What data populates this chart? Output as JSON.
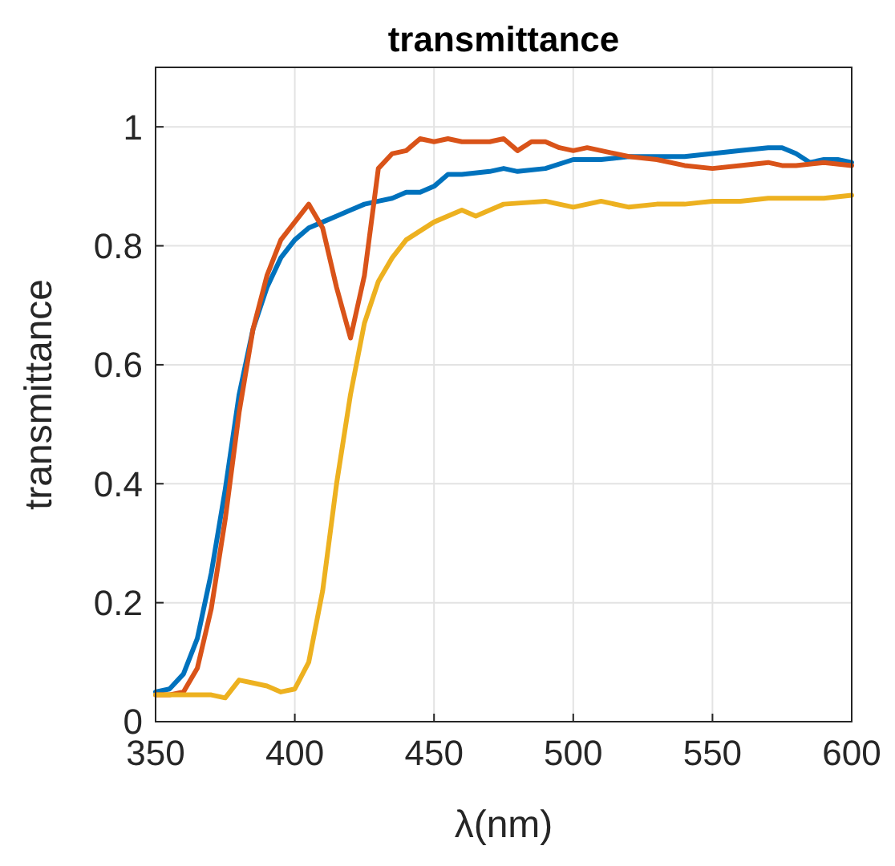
{
  "chart_data": {
    "type": "line",
    "title": "transmittance",
    "xlabel": "λ(nm)",
    "ylabel": "transmittance",
    "xlim": [
      350,
      600
    ],
    "ylim": [
      0,
      1.1
    ],
    "xticks": [
      350,
      400,
      450,
      500,
      550,
      600
    ],
    "yticks": [
      0,
      0.2,
      0.4,
      0.6,
      0.8,
      1
    ],
    "grid": true,
    "marker": "none",
    "line_style": "solid",
    "series": [
      {
        "color": "#0072bd",
        "x": [
          350,
          355,
          360,
          365,
          370,
          375,
          380,
          385,
          390,
          395,
          400,
          405,
          410,
          415,
          420,
          425,
          430,
          435,
          440,
          445,
          450,
          455,
          460,
          470,
          475,
          480,
          490,
          500,
          510,
          520,
          530,
          540,
          550,
          560,
          570,
          575,
          580,
          585,
          590,
          595,
          600
        ],
        "values": [
          0.05,
          0.055,
          0.08,
          0.14,
          0.25,
          0.39,
          0.55,
          0.66,
          0.73,
          0.78,
          0.81,
          0.83,
          0.84,
          0.85,
          0.86,
          0.87,
          0.875,
          0.88,
          0.89,
          0.89,
          0.9,
          0.92,
          0.92,
          0.925,
          0.93,
          0.925,
          0.93,
          0.945,
          0.945,
          0.95,
          0.95,
          0.95,
          0.955,
          0.96,
          0.965,
          0.965,
          0.955,
          0.94,
          0.945,
          0.945,
          0.94
        ]
      },
      {
        "color": "#d95319",
        "x": [
          350,
          355,
          360,
          365,
          370,
          375,
          380,
          385,
          390,
          395,
          400,
          405,
          410,
          415,
          420,
          425,
          430,
          435,
          440,
          445,
          450,
          455,
          460,
          470,
          475,
          480,
          485,
          490,
          495,
          500,
          505,
          510,
          520,
          530,
          540,
          550,
          560,
          570,
          575,
          580,
          590,
          600
        ],
        "values": [
          0.045,
          0.045,
          0.05,
          0.09,
          0.19,
          0.34,
          0.52,
          0.66,
          0.75,
          0.81,
          0.84,
          0.87,
          0.83,
          0.73,
          0.645,
          0.75,
          0.93,
          0.955,
          0.96,
          0.98,
          0.975,
          0.98,
          0.975,
          0.975,
          0.98,
          0.96,
          0.975,
          0.975,
          0.965,
          0.96,
          0.965,
          0.96,
          0.95,
          0.945,
          0.935,
          0.93,
          0.935,
          0.94,
          0.935,
          0.935,
          0.94,
          0.935
        ]
      },
      {
        "color": "#edb120",
        "x": [
          350,
          360,
          370,
          375,
          380,
          385,
          390,
          395,
          400,
          405,
          410,
          415,
          420,
          425,
          430,
          435,
          440,
          450,
          460,
          465,
          470,
          475,
          490,
          500,
          510,
          520,
          530,
          540,
          550,
          560,
          570,
          580,
          590,
          600
        ],
        "values": [
          0.045,
          0.045,
          0.045,
          0.04,
          0.07,
          0.065,
          0.06,
          0.05,
          0.055,
          0.1,
          0.22,
          0.4,
          0.55,
          0.67,
          0.74,
          0.78,
          0.81,
          0.84,
          0.86,
          0.85,
          0.86,
          0.87,
          0.875,
          0.865,
          0.875,
          0.865,
          0.87,
          0.87,
          0.875,
          0.875,
          0.88,
          0.88,
          0.88,
          0.885
        ]
      }
    ]
  }
}
